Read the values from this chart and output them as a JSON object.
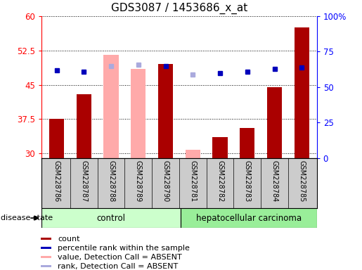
{
  "title": "GDS3087 / 1453686_x_at",
  "samples": [
    "GSM228786",
    "GSM228787",
    "GSM228788",
    "GSM228789",
    "GSM228790",
    "GSM228781",
    "GSM228782",
    "GSM228783",
    "GSM228784",
    "GSM228785"
  ],
  "bar_values": [
    37.5,
    43.0,
    null,
    null,
    49.5,
    null,
    33.5,
    35.5,
    44.5,
    57.5
  ],
  "bar_absent_values": [
    null,
    null,
    51.5,
    48.5,
    null,
    30.8,
    null,
    null,
    null,
    null
  ],
  "dot_percentiles": [
    62,
    61,
    null,
    null,
    65,
    null,
    60,
    61,
    63,
    64
  ],
  "dot_absent_percentiles": [
    null,
    null,
    65,
    66,
    null,
    59,
    null,
    null,
    null,
    null
  ],
  "ylim": [
    29,
    60
  ],
  "yticks": [
    30,
    37.5,
    45,
    52.5,
    60
  ],
  "ytick_labels": [
    "30",
    "37.5",
    "45",
    "52.5",
    "60"
  ],
  "y2lim": [
    0,
    100
  ],
  "y2ticks": [
    0,
    25,
    50,
    75,
    100
  ],
  "y2tick_labels": [
    "0",
    "25",
    "50",
    "75",
    "100%"
  ],
  "bar_color": "#aa0000",
  "bar_absent_color": "#ffaaaa",
  "dot_color": "#0000bb",
  "dot_absent_color": "#aaaadd",
  "xlabel_bg": "#cccccc",
  "control_color": "#ccffcc",
  "carcinoma_color": "#99ee99",
  "title_fontsize": 11,
  "tick_fontsize": 8.5,
  "sample_fontsize": 7,
  "legend_fontsize": 8,
  "group_fontsize": 8.5,
  "disease_state_fontsize": 8
}
